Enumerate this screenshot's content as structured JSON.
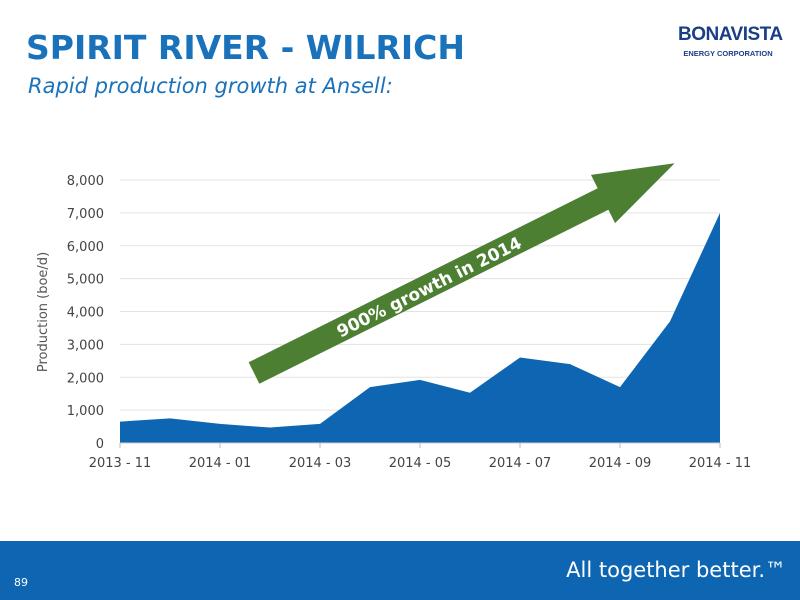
{
  "slide": {
    "title": "SPIRIT RIVER - WILRICH",
    "subtitle": "Rapid production growth at Ansell:",
    "logo_name": "BONAVISTA",
    "logo_sub": "ENERGY CORPORATION",
    "page_number": "89",
    "tagline": "All together better.™"
  },
  "colors": {
    "area_fill": "#0e66b3",
    "arrow_fill": "#4d7f33",
    "title_color": "#1a72bb",
    "footer_bg": "#0e66b3"
  },
  "chart_data": {
    "type": "area",
    "x": [
      "2013 - 11",
      "2013 - 12",
      "2014 - 01",
      "2014 - 02",
      "2014 - 03",
      "2014 - 04",
      "2014 - 05",
      "2014 - 06",
      "2014 - 07",
      "2014 - 08",
      "2014 - 09",
      "2014 - 10",
      "2014 - 11"
    ],
    "x_tick_labels": [
      "2013 - 11",
      "2014 - 01",
      "2014 - 03",
      "2014 - 05",
      "2014 - 07",
      "2014 - 09",
      "2014 - 11"
    ],
    "series": [
      {
        "values": [
          650,
          750,
          580,
          470,
          580,
          1700,
          1920,
          1530,
          2600,
          2400,
          1700,
          3700,
          7000
        ]
      }
    ],
    "ylabel": "Production (boe/d)",
    "xlabel": "",
    "ylim": [
      0,
      8000
    ],
    "y_ticks": [
      0,
      1000,
      2000,
      3000,
      4000,
      5000,
      6000,
      7000,
      8000
    ],
    "y_tick_labels": [
      "0",
      "1,000",
      "2,000",
      "3,000",
      "4,000",
      "5,000",
      "6,000",
      "7,000",
      "8,000"
    ],
    "grid": true,
    "annotation": "900% growth in 2014"
  }
}
